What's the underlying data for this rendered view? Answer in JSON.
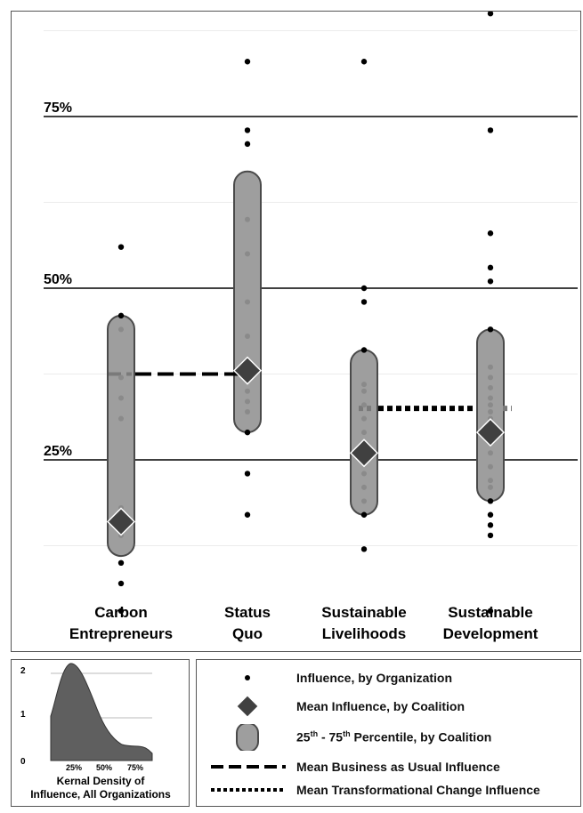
{
  "chart_data": {
    "type": "scatter",
    "y_unit": "percentile of influence",
    "ylim": [
      0,
      100
    ],
    "reference_lines": [
      {
        "value": 25,
        "label": "25%"
      },
      {
        "value": 50,
        "label": "50%"
      },
      {
        "value": 75,
        "label": "75%"
      }
    ],
    "categories": [
      {
        "lines": [
          "Carbon",
          "Entrepreneurs"
        ],
        "label": "Carbon Entrepreneurs"
      },
      {
        "lines": [
          "Status",
          "Quo"
        ],
        "label": "Status Quo"
      },
      {
        "lines": [
          "Sustainable",
          "Livelihoods"
        ],
        "label": "Sustainable Livelihoods"
      },
      {
        "lines": [
          "Sustainable",
          "Development"
        ],
        "label": "Sustainable Development"
      }
    ],
    "series": [
      {
        "name": "Carbon Entrepreneurs",
        "p25": 11,
        "p75": 46,
        "mean": 16,
        "points": [
          3,
          7,
          10,
          14,
          16,
          18,
          31,
          34,
          37,
          44,
          46,
          56
        ]
      },
      {
        "name": "Status Quo",
        "p25": 29,
        "p75": 67,
        "mean": 38,
        "points": [
          17,
          23,
          29,
          32,
          33.5,
          35,
          37,
          43,
          48,
          55,
          60,
          71,
          73,
          83
        ]
      },
      {
        "name": "Sustainable Livelihoods",
        "p25": 17,
        "p75": 41,
        "mean": 26,
        "points": [
          12,
          17,
          19,
          21,
          23,
          25,
          27,
          29,
          31,
          33,
          35,
          36,
          41,
          48,
          50,
          83
        ]
      },
      {
        "name": "Sustainable Development",
        "p25": 19,
        "p75": 44,
        "mean": 29,
        "points": [
          3,
          14,
          15.5,
          17,
          19,
          21,
          22,
          24,
          26,
          28,
          30,
          31,
          32,
          33,
          34,
          35.5,
          37,
          38.5,
          44,
          51,
          53,
          58,
          73,
          90
        ]
      }
    ],
    "mean_business_as_usual": 37.5,
    "mean_transformational_change": 32.5
  },
  "inset": {
    "title_line1": "Kernal Density of",
    "title_line2": "Influence, All Organizations",
    "y_ticks": [
      "0",
      "1",
      "2"
    ],
    "x_ticks": [
      "25%",
      "50%",
      "75%"
    ],
    "fill": "#5f5f5f"
  },
  "legend": {
    "items": [
      {
        "label": "Influence, by Organization"
      },
      {
        "label": "Mean Influence, by Coalition"
      },
      {
        "label": "25th - 75th Percentile, by Coalition",
        "pre": "25",
        "sup1": "th",
        "mid": " - 75",
        "sup2": "th",
        "post": " Percentile, by Coalition"
      },
      {
        "label": "Mean Business as Usual Influence"
      },
      {
        "label": "Mean Transformational Change Influence"
      }
    ]
  },
  "colors": {
    "range_fill": "#9e9e9e",
    "range_stroke": "#4a4a4a",
    "diamond": "#404040",
    "dot": "#000000",
    "inner_dot": "#8a8a8a"
  }
}
